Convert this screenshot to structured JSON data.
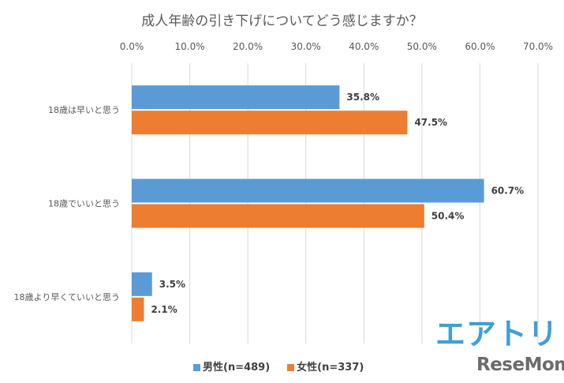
{
  "chart_data": {
    "type": "bar",
    "orientation": "horizontal",
    "title": "成人年齢の引き下げについてどう感じますか？",
    "categories": [
      "18歳は早いと思う",
      "18歳でいいと思う",
      "18歳より早くていいと思う"
    ],
    "series": [
      {
        "name": "男性(n=489)",
        "values": [
          35.8,
          60.7,
          3.5
        ],
        "color": "#5b9bd5"
      },
      {
        "name": "女性(n=337)",
        "values": [
          47.5,
          50.4,
          2.1
        ],
        "color": "#ed7d31"
      }
    ],
    "data_labels": [
      [
        "35.8%",
        "60.7%",
        "3.5%"
      ],
      [
        "47.5%",
        "50.4%",
        "2.1%"
      ]
    ],
    "xlim": [
      0,
      70
    ],
    "x_ticks": [
      "0.0%",
      "10.0%",
      "20.0%",
      "30.0%",
      "40.0%",
      "50.0%",
      "60.0%",
      "70.0%"
    ],
    "x_axis_position": "top",
    "grid": true,
    "legend_position": "bottom"
  },
  "logos": {
    "brand1": "エアトリ",
    "brand2": "ReseMom."
  }
}
